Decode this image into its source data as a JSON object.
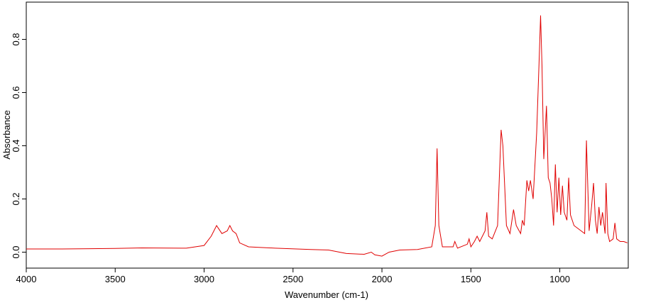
{
  "chart_data": {
    "type": "line",
    "x_label": "Wavenumber (cm-1)",
    "y_label": "Absorbance",
    "xlim": [
      4000,
      615
    ],
    "ylim": [
      -0.06,
      0.94
    ],
    "xticks": [
      4000,
      3500,
      3000,
      2500,
      2000,
      1500,
      1000
    ],
    "yticks": [
      {
        "value": 0,
        "label": "0.0"
      },
      0.2,
      0.4,
      0.6,
      0.8
    ],
    "series": [
      {
        "color": "#e00000",
        "x": [
          4000,
          3800,
          3500,
          3350,
          3100,
          3050,
          3000,
          2960,
          2930,
          2920,
          2900,
          2870,
          2855,
          2840,
          2820,
          2800,
          2750,
          2600,
          2400,
          2300,
          2200,
          2100,
          2060,
          2040,
          2000,
          1960,
          1900,
          1800,
          1720,
          1700,
          1690,
          1680,
          1660,
          1600,
          1590,
          1575,
          1520,
          1510,
          1500,
          1480,
          1465,
          1450,
          1420,
          1410,
          1400,
          1380,
          1350,
          1330,
          1320,
          1300,
          1280,
          1260,
          1245,
          1220,
          1210,
          1200,
          1185,
          1175,
          1165,
          1150,
          1130,
          1115,
          1108,
          1100,
          1090,
          1075,
          1065,
          1055,
          1045,
          1035,
          1025,
          1015,
          1005,
          995,
          985,
          975,
          960,
          950,
          940,
          920,
          880,
          860,
          850,
          845,
          835,
          820,
          810,
          800,
          790,
          780,
          770,
          760,
          745,
          740,
          730,
          720,
          700,
          690,
          680,
          660,
          640,
          620
        ],
        "values": [
          0.012,
          0.012,
          0.014,
          0.016,
          0.015,
          0.02,
          0.025,
          0.06,
          0.1,
          0.09,
          0.07,
          0.08,
          0.1,
          0.08,
          0.07,
          0.035,
          0.02,
          0.015,
          0.01,
          0.008,
          -0.005,
          -0.008,
          0.0,
          -0.01,
          -0.015,
          0.0,
          0.008,
          0.01,
          0.02,
          0.1,
          0.39,
          0.1,
          0.02,
          0.02,
          0.04,
          0.015,
          0.03,
          0.05,
          0.02,
          0.04,
          0.06,
          0.04,
          0.08,
          0.15,
          0.06,
          0.05,
          0.1,
          0.46,
          0.4,
          0.1,
          0.07,
          0.16,
          0.1,
          0.07,
          0.12,
          0.1,
          0.27,
          0.23,
          0.27,
          0.2,
          0.45,
          0.74,
          0.89,
          0.7,
          0.35,
          0.55,
          0.28,
          0.26,
          0.2,
          0.1,
          0.33,
          0.15,
          0.28,
          0.14,
          0.25,
          0.15,
          0.12,
          0.28,
          0.14,
          0.1,
          0.08,
          0.07,
          0.42,
          0.3,
          0.08,
          0.18,
          0.26,
          0.12,
          0.07,
          0.17,
          0.1,
          0.15,
          0.07,
          0.26,
          0.07,
          0.04,
          0.05,
          0.11,
          0.05,
          0.04,
          0.04,
          0.035
        ]
      }
    ]
  }
}
